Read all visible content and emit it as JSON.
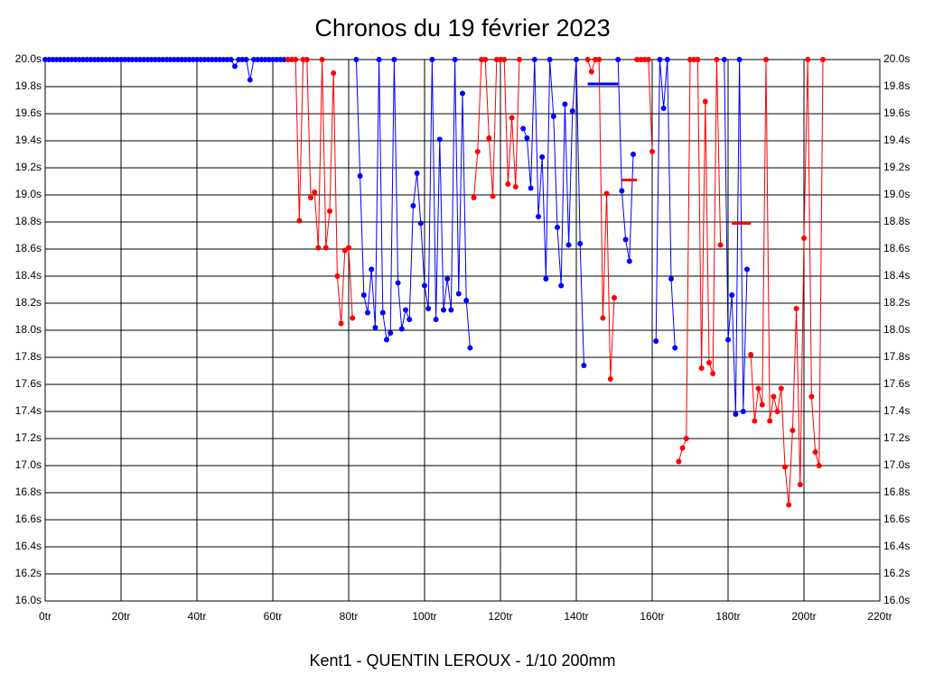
{
  "chart_data": {
    "type": "line",
    "title": "Chronos du 19 février 2023",
    "x_label": "Kent1 - QUENTIN LEROUX - 1/10 200mm",
    "xlim": [
      0,
      220
    ],
    "xticks": [
      {
        "value": 0,
        "label": "0tr"
      },
      {
        "value": 20,
        "label": "20tr"
      },
      {
        "value": 40,
        "label": "40tr"
      },
      {
        "value": 60,
        "label": "60tr"
      },
      {
        "value": 80,
        "label": "80tr"
      },
      {
        "value": 100,
        "label": "100tr"
      },
      {
        "value": 120,
        "label": "120tr"
      },
      {
        "value": 140,
        "label": "140tr"
      },
      {
        "value": 160,
        "label": "160tr"
      },
      {
        "value": 180,
        "label": "180tr"
      },
      {
        "value": 200,
        "label": "200tr"
      },
      {
        "value": 220,
        "label": "220tr"
      }
    ],
    "ylim": [
      16,
      20
    ],
    "yticks": [
      {
        "value": 16,
        "label": "16.0s"
      },
      {
        "value": 16.2,
        "label": "16.2s"
      },
      {
        "value": 16.4,
        "label": "16.4s"
      },
      {
        "value": 16.6,
        "label": "16.6s"
      },
      {
        "value": 16.8,
        "label": "16.8s"
      },
      {
        "value": 17,
        "label": "17.0s"
      },
      {
        "value": 17.2,
        "label": "17.2s"
      },
      {
        "value": 17.4,
        "label": "17.4s"
      },
      {
        "value": 17.6,
        "label": "17.6s"
      },
      {
        "value": 17.8,
        "label": "17.8s"
      },
      {
        "value": 18,
        "label": "18.0s"
      },
      {
        "value": 18.2,
        "label": "18.2s"
      },
      {
        "value": 18.4,
        "label": "18.4s"
      },
      {
        "value": 18.6,
        "label": "18.6s"
      },
      {
        "value": 18.8,
        "label": "18.8s"
      },
      {
        "value": 19,
        "label": "19.0s"
      },
      {
        "value": 19.2,
        "label": "19.2s"
      },
      {
        "value": 19.4,
        "label": "19.4s"
      },
      {
        "value": 19.6,
        "label": "19.6s"
      },
      {
        "value": 19.8,
        "label": "19.8s"
      },
      {
        "value": 20,
        "label": "20.0s"
      }
    ],
    "grid": true,
    "series": [
      {
        "color": "#0000ff",
        "x": [
          0,
          1,
          2,
          3,
          4,
          5,
          6,
          7,
          8,
          9,
          10,
          11,
          12,
          13,
          14,
          15,
          16,
          17,
          18,
          19,
          20,
          21,
          22,
          23,
          24,
          25,
          26,
          27,
          28,
          29,
          30,
          31,
          32,
          33,
          34,
          35,
          36,
          37,
          38,
          39,
          40,
          41,
          42,
          43,
          44,
          45,
          46,
          47,
          48,
          49,
          50,
          51,
          52,
          53,
          54,
          55,
          56,
          57,
          58,
          59,
          60,
          61,
          62,
          63,
          64,
          82,
          83,
          84,
          85,
          86,
          87,
          88,
          89,
          90,
          91,
          92,
          93,
          94,
          95,
          96,
          97,
          98,
          99,
          100,
          101,
          102,
          103,
          104,
          105,
          106,
          107,
          108,
          109,
          110,
          111,
          112,
          113,
          126,
          127,
          128,
          129,
          130,
          131,
          132,
          133,
          134,
          135,
          136,
          137,
          138,
          139,
          140,
          141,
          142,
          143,
          151,
          152,
          153,
          154,
          155,
          156,
          161,
          162,
          163,
          164,
          165,
          166,
          167,
          179,
          180,
          181,
          182,
          183,
          184,
          185
        ],
        "values": [
          20,
          20,
          20,
          20,
          20,
          20,
          20,
          20,
          20,
          20,
          20,
          20,
          20,
          20,
          20,
          20,
          20,
          20,
          20,
          20,
          20,
          20,
          20,
          20,
          20,
          20,
          20,
          20,
          20,
          20,
          20,
          20,
          20,
          20,
          20,
          20,
          20,
          20,
          20,
          20,
          20,
          20,
          20,
          20,
          20,
          20,
          20,
          20,
          20,
          20,
          19.95,
          20,
          20,
          20,
          19.85,
          20,
          20,
          20,
          20,
          20,
          20,
          20,
          20,
          20,
          null,
          20,
          19.14,
          18.26,
          18.13,
          18.45,
          18.02,
          20,
          18.13,
          17.93,
          17.98,
          20,
          18.35,
          18.01,
          18.15,
          18.08,
          18.92,
          19.16,
          18.79,
          18.33,
          18.16,
          20,
          18.08,
          19.41,
          18.15,
          18.38,
          18.15,
          20,
          18.27,
          19.75,
          18.22,
          17.87,
          null,
          19.49,
          19.42,
          19.05,
          20,
          18.84,
          19.28,
          18.38,
          20,
          19.58,
          18.76,
          18.33,
          19.67,
          18.63,
          19.62,
          20,
          18.64,
          17.74,
          null,
          20,
          19.03,
          18.67,
          18.51,
          19.3,
          null,
          17.92,
          20,
          19.64,
          20,
          18.38,
          17.87,
          null,
          20,
          17.93,
          18.26,
          17.38,
          20,
          17.4,
          18.45
        ]
      },
      {
        "color": "#ff0000",
        "x": [
          64,
          65,
          66,
          67,
          68,
          69,
          70,
          71,
          72,
          73,
          74,
          75,
          76,
          77,
          78,
          79,
          80,
          81,
          82,
          113,
          114,
          115,
          116,
          117,
          118,
          119,
          120,
          121,
          122,
          123,
          124,
          125,
          126,
          143,
          144,
          145,
          146,
          147,
          148,
          149,
          150,
          151,
          156,
          157,
          158,
          159,
          160,
          161,
          167,
          168,
          169,
          170,
          171,
          172,
          173,
          174,
          175,
          176,
          177,
          178,
          179,
          186,
          187,
          188,
          189,
          190,
          191,
          192,
          193,
          194,
          195,
          196,
          197,
          198,
          199,
          200,
          201,
          202,
          203,
          204,
          205
        ],
        "values": [
          20,
          20,
          20,
          18.81,
          20,
          20,
          18.98,
          19.02,
          18.61,
          20,
          18.61,
          18.88,
          19.9,
          18.4,
          18.05,
          18.59,
          18.61,
          18.09,
          null,
          18.98,
          19.32,
          20,
          20,
          19.42,
          18.99,
          20,
          20,
          20,
          19.08,
          19.57,
          19.06,
          20,
          null,
          20,
          19.91,
          20,
          20,
          18.09,
          19.01,
          17.64,
          18.24,
          null,
          20,
          20,
          20,
          20,
          19.32,
          null,
          17.03,
          17.13,
          17.2,
          20,
          20,
          20,
          17.72,
          19.69,
          17.76,
          17.68,
          20,
          18.63,
          null,
          17.82,
          17.33,
          17.57,
          17.45,
          20,
          17.33,
          17.51,
          17.4,
          17.57,
          16.99,
          16.71,
          17.26,
          18.16,
          16.86,
          18.68,
          20,
          17.51,
          17.1,
          17.0,
          20
        ]
      }
    ],
    "averages": [
      {
        "color": "#0000ff",
        "x": [
          143,
          151
        ],
        "value": 19.82
      },
      {
        "color": "#ff0000",
        "x": [
          152,
          156
        ],
        "value": 19.11
      },
      {
        "color": "#ff0000",
        "x": [
          181,
          186
        ],
        "value": 18.79
      }
    ]
  }
}
